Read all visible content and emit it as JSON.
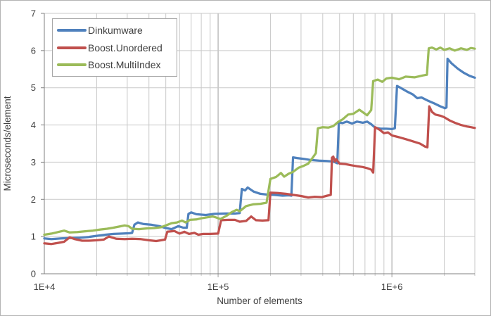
{
  "chart_data": {
    "type": "line",
    "title": "",
    "xlabel": "Number of elements",
    "ylabel": "Microseconds/element",
    "xscale": "log",
    "xlim": [
      10000,
      3000000
    ],
    "ylim": [
      0,
      7
    ],
    "grid": "major and minor log verticals, integer horizontals",
    "legend_position": "top-left",
    "xticks": [
      {
        "value": 10000,
        "label": "1E+4"
      },
      {
        "value": 100000,
        "label": "1E+5"
      },
      {
        "value": 1000000,
        "label": "1E+6"
      }
    ],
    "yticks": [
      {
        "value": 0,
        "label": "0"
      },
      {
        "value": 1,
        "label": "1"
      },
      {
        "value": 2,
        "label": "2"
      },
      {
        "value": 3,
        "label": "3"
      },
      {
        "value": 4,
        "label": "4"
      },
      {
        "value": 5,
        "label": "5"
      },
      {
        "value": 6,
        "label": "6"
      },
      {
        "value": 7,
        "label": "7"
      }
    ],
    "series": [
      {
        "name": "Dinkumware",
        "color": "#4F81BD",
        "points": [
          [
            10000,
            0.95
          ],
          [
            11000,
            0.93
          ],
          [
            12500,
            0.95
          ],
          [
            14000,
            0.96
          ],
          [
            16000,
            0.97
          ],
          [
            18000,
            0.99
          ],
          [
            20000,
            1.02
          ],
          [
            22500,
            1.05
          ],
          [
            25000,
            1.07
          ],
          [
            28000,
            1.08
          ],
          [
            31000,
            1.09
          ],
          [
            32000,
            1.1
          ],
          [
            33000,
            1.32
          ],
          [
            34500,
            1.38
          ],
          [
            37000,
            1.34
          ],
          [
            41000,
            1.32
          ],
          [
            46000,
            1.28
          ],
          [
            49000,
            1.24
          ],
          [
            54000,
            1.2
          ],
          [
            59000,
            1.28
          ],
          [
            63000,
            1.24
          ],
          [
            66000,
            1.24
          ],
          [
            67500,
            1.61
          ],
          [
            70000,
            1.65
          ],
          [
            75000,
            1.6
          ],
          [
            85000,
            1.58
          ],
          [
            95000,
            1.61
          ],
          [
            110000,
            1.62
          ],
          [
            125000,
            1.62
          ],
          [
            133000,
            1.63
          ],
          [
            137000,
            2.28
          ],
          [
            143000,
            2.24
          ],
          [
            148000,
            2.32
          ],
          [
            160000,
            2.21
          ],
          [
            175000,
            2.15
          ],
          [
            190000,
            2.13
          ],
          [
            210000,
            2.12
          ],
          [
            235000,
            2.1
          ],
          [
            255000,
            2.11
          ],
          [
            264000,
            2.1
          ],
          [
            270000,
            3.13
          ],
          [
            285000,
            3.11
          ],
          [
            310000,
            3.09
          ],
          [
            340000,
            3.06
          ],
          [
            380000,
            3.04
          ],
          [
            420000,
            3.03
          ],
          [
            450000,
            3.02
          ],
          [
            470000,
            3.0
          ],
          [
            485000,
            2.97
          ],
          [
            495000,
            4.07
          ],
          [
            520000,
            4.05
          ],
          [
            550000,
            4.09
          ],
          [
            590000,
            4.04
          ],
          [
            630000,
            4.09
          ],
          [
            680000,
            4.06
          ],
          [
            720000,
            4.09
          ],
          [
            760000,
            4.02
          ],
          [
            800000,
            3.93
          ],
          [
            860000,
            3.9
          ],
          [
            930000,
            3.9
          ],
          [
            1000000,
            3.89
          ],
          [
            1040000,
            3.91
          ],
          [
            1070000,
            5.05
          ],
          [
            1130000,
            4.99
          ],
          [
            1220000,
            4.9
          ],
          [
            1320000,
            4.82
          ],
          [
            1400000,
            4.72
          ],
          [
            1480000,
            4.74
          ],
          [
            1600000,
            4.66
          ],
          [
            1750000,
            4.58
          ],
          [
            1900000,
            4.5
          ],
          [
            2020000,
            4.45
          ],
          [
            2060000,
            4.47
          ],
          [
            2090000,
            5.78
          ],
          [
            2200000,
            5.66
          ],
          [
            2400000,
            5.51
          ],
          [
            2600000,
            5.4
          ],
          [
            2800000,
            5.32
          ],
          [
            3000000,
            5.27
          ]
        ]
      },
      {
        "name": "Boost.Unordered",
        "color": "#C0504D",
        "points": [
          [
            10000,
            0.82
          ],
          [
            11000,
            0.8
          ],
          [
            12000,
            0.83
          ],
          [
            13000,
            0.86
          ],
          [
            14000,
            0.98
          ],
          [
            15000,
            0.93
          ],
          [
            16500,
            0.89
          ],
          [
            18000,
            0.89
          ],
          [
            20000,
            0.9
          ],
          [
            22000,
            0.92
          ],
          [
            23500,
            1.0
          ],
          [
            26000,
            0.94
          ],
          [
            29000,
            0.93
          ],
          [
            32000,
            0.94
          ],
          [
            36000,
            0.93
          ],
          [
            40000,
            0.9
          ],
          [
            44000,
            0.88
          ],
          [
            47000,
            0.9
          ],
          [
            49500,
            0.92
          ],
          [
            51000,
            1.13
          ],
          [
            56000,
            1.15
          ],
          [
            60000,
            1.08
          ],
          [
            64000,
            1.13
          ],
          [
            68000,
            1.07
          ],
          [
            73000,
            1.1
          ],
          [
            77000,
            1.05
          ],
          [
            82000,
            1.07
          ],
          [
            90000,
            1.07
          ],
          [
            100000,
            1.08
          ],
          [
            104000,
            1.44
          ],
          [
            115000,
            1.45
          ],
          [
            125000,
            1.45
          ],
          [
            133000,
            1.4
          ],
          [
            145000,
            1.42
          ],
          [
            155000,
            1.54
          ],
          [
            165000,
            1.44
          ],
          [
            180000,
            1.43
          ],
          [
            195000,
            1.44
          ],
          [
            200000,
            2.18
          ],
          [
            220000,
            2.17
          ],
          [
            245000,
            2.15
          ],
          [
            270000,
            2.12
          ],
          [
            300000,
            2.09
          ],
          [
            330000,
            2.05
          ],
          [
            360000,
            2.07
          ],
          [
            395000,
            2.06
          ],
          [
            425000,
            2.1
          ],
          [
            445000,
            2.12
          ],
          [
            452000,
            3.12
          ],
          [
            460000,
            3.15
          ],
          [
            470000,
            3.02
          ],
          [
            478000,
            3.08
          ],
          [
            500000,
            2.96
          ],
          [
            540000,
            2.95
          ],
          [
            580000,
            2.92
          ],
          [
            630000,
            2.89
          ],
          [
            680000,
            2.87
          ],
          [
            720000,
            2.84
          ],
          [
            760000,
            2.8
          ],
          [
            780000,
            2.72
          ],
          [
            800000,
            3.94
          ],
          [
            850000,
            3.87
          ],
          [
            900000,
            3.78
          ],
          [
            950000,
            3.8
          ],
          [
            1000000,
            3.72
          ],
          [
            1100000,
            3.67
          ],
          [
            1200000,
            3.62
          ],
          [
            1300000,
            3.57
          ],
          [
            1450000,
            3.5
          ],
          [
            1550000,
            3.42
          ],
          [
            1600000,
            3.4
          ],
          [
            1640000,
            4.5
          ],
          [
            1700000,
            4.35
          ],
          [
            1780000,
            4.28
          ],
          [
            1900000,
            4.25
          ],
          [
            2000000,
            4.21
          ],
          [
            2150000,
            4.12
          ],
          [
            2300000,
            4.06
          ],
          [
            2500000,
            4.0
          ],
          [
            2700000,
            3.96
          ],
          [
            2850000,
            3.94
          ],
          [
            3000000,
            3.92
          ]
        ]
      },
      {
        "name": "Boost.MultiIndex",
        "color": "#9BBB59",
        "points": [
          [
            10000,
            1.05
          ],
          [
            11000,
            1.08
          ],
          [
            12500,
            1.14
          ],
          [
            13000,
            1.16
          ],
          [
            14000,
            1.11
          ],
          [
            15500,
            1.12
          ],
          [
            17000,
            1.14
          ],
          [
            19000,
            1.16
          ],
          [
            21000,
            1.19
          ],
          [
            23000,
            1.21
          ],
          [
            25000,
            1.24
          ],
          [
            27000,
            1.27
          ],
          [
            29000,
            1.3
          ],
          [
            30500,
            1.28
          ],
          [
            32000,
            1.21
          ],
          [
            35000,
            1.2
          ],
          [
            39000,
            1.22
          ],
          [
            43000,
            1.23
          ],
          [
            47000,
            1.25
          ],
          [
            50000,
            1.3
          ],
          [
            54000,
            1.36
          ],
          [
            58000,
            1.38
          ],
          [
            62000,
            1.43
          ],
          [
            65000,
            1.38
          ],
          [
            69000,
            1.45
          ],
          [
            75000,
            1.46
          ],
          [
            80000,
            1.49
          ],
          [
            87000,
            1.52
          ],
          [
            93000,
            1.54
          ],
          [
            98000,
            1.51
          ],
          [
            103000,
            1.47
          ],
          [
            112000,
            1.56
          ],
          [
            120000,
            1.66
          ],
          [
            128000,
            1.72
          ],
          [
            133000,
            1.68
          ],
          [
            145000,
            1.82
          ],
          [
            160000,
            1.87
          ],
          [
            175000,
            1.88
          ],
          [
            190000,
            1.91
          ],
          [
            200000,
            2.55
          ],
          [
            215000,
            2.6
          ],
          [
            230000,
            2.71
          ],
          [
            240000,
            2.61
          ],
          [
            255000,
            2.69
          ],
          [
            270000,
            2.74
          ],
          [
            290000,
            2.85
          ],
          [
            310000,
            2.9
          ],
          [
            330000,
            2.96
          ],
          [
            350000,
            3.12
          ],
          [
            365000,
            3.24
          ],
          [
            375000,
            3.91
          ],
          [
            400000,
            3.94
          ],
          [
            430000,
            3.93
          ],
          [
            460000,
            3.97
          ],
          [
            490000,
            4.08
          ],
          [
            520000,
            4.15
          ],
          [
            560000,
            4.28
          ],
          [
            600000,
            4.3
          ],
          [
            650000,
            4.41
          ],
          [
            700000,
            4.3
          ],
          [
            720000,
            4.26
          ],
          [
            760000,
            4.4
          ],
          [
            780000,
            5.18
          ],
          [
            830000,
            5.22
          ],
          [
            880000,
            5.16
          ],
          [
            930000,
            5.25
          ],
          [
            1000000,
            5.27
          ],
          [
            1100000,
            5.23
          ],
          [
            1200000,
            5.3
          ],
          [
            1350000,
            5.28
          ],
          [
            1500000,
            5.33
          ],
          [
            1590000,
            5.35
          ],
          [
            1630000,
            6.06
          ],
          [
            1700000,
            6.08
          ],
          [
            1800000,
            6.03
          ],
          [
            1900000,
            6.08
          ],
          [
            2000000,
            6.02
          ],
          [
            2150000,
            6.06
          ],
          [
            2300000,
            6.0
          ],
          [
            2500000,
            6.06
          ],
          [
            2700000,
            6.02
          ],
          [
            2850000,
            6.07
          ],
          [
            3000000,
            6.05
          ]
        ]
      }
    ]
  }
}
